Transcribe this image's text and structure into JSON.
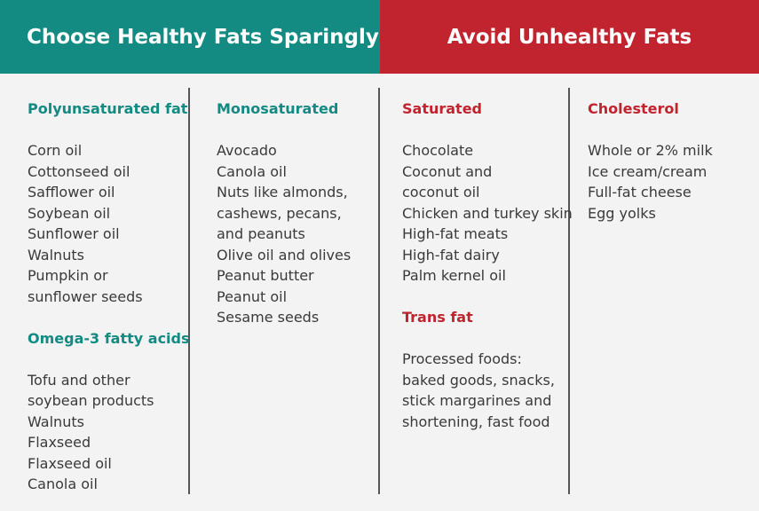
{
  "headers": {
    "left": "Choose Healthy Fats Sparingly",
    "right": "Avoid Unhealthy Fats"
  },
  "colors": {
    "teal": "#138a82",
    "red": "#c1232f",
    "background": "#f3f3f3"
  },
  "columns": [
    {
      "sections": [
        {
          "title": "Polyunsaturated fat",
          "items": [
            "Corn oil",
            "Cottonseed oil",
            "Safflower oil",
            "Soybean oil",
            "Sunflower oil",
            "Walnuts",
            "Pumpkin or",
            "sunflower seeds"
          ]
        },
        {
          "title": "Omega-3 fatty acids",
          "items": [
            "Tofu and other",
            "soybean products",
            "Walnuts",
            "Flaxseed",
            "Flaxseed oil",
            "Canola oil"
          ]
        }
      ]
    },
    {
      "sections": [
        {
          "title": "Monosaturated",
          "items": [
            "Avocado",
            "Canola oil",
            "Nuts like almonds,",
            "cashews, pecans,",
            "and peanuts",
            "Olive oil and olives",
            "Peanut butter",
            "Peanut oil",
            "Sesame seeds"
          ]
        }
      ]
    },
    {
      "sections": [
        {
          "title": "Saturated",
          "items": [
            "Chocolate",
            "Coconut and",
            "coconut oil",
            "Chicken and turkey skin",
            "High-fat meats",
            "High-fat dairy",
            "Palm kernel oil"
          ]
        },
        {
          "title": "Trans fat",
          "items": [
            "Processed foods:",
            "baked goods, snacks,",
            "stick margarines and",
            "shortening, fast food"
          ]
        }
      ]
    },
    {
      "sections": [
        {
          "title": "Cholesterol",
          "items": [
            "Whole or 2% milk",
            "Ice cream/cream",
            "Full-fat cheese",
            "Egg yolks"
          ]
        }
      ]
    }
  ]
}
